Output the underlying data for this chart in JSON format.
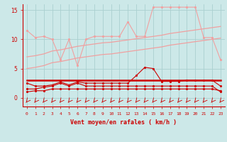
{
  "x": [
    0,
    1,
    2,
    3,
    4,
    5,
    6,
    7,
    8,
    9,
    10,
    11,
    12,
    13,
    14,
    15,
    16,
    17,
    18,
    19,
    20,
    21,
    22,
    23
  ],
  "line_top": [
    11.5,
    10.3,
    10.5,
    10.0,
    6.5,
    10.0,
    5.5,
    10.0,
    10.5,
    10.5,
    10.5,
    10.5,
    13.0,
    10.5,
    10.5,
    15.5,
    15.5,
    15.5,
    15.5,
    15.5,
    15.5,
    10.3,
    10.3,
    6.5
  ],
  "line_mid_lo": [
    5.0,
    5.2,
    5.5,
    6.0,
    6.2,
    6.5,
    6.8,
    7.0,
    7.2,
    7.4,
    7.5,
    7.7,
    7.9,
    8.1,
    8.3,
    8.5,
    8.7,
    9.0,
    9.2,
    9.4,
    9.6,
    9.8,
    10.0,
    10.2
  ],
  "line_mid_hi": [
    7.0,
    7.2,
    7.5,
    8.0,
    8.2,
    8.5,
    8.8,
    9.0,
    9.2,
    9.4,
    9.5,
    9.7,
    9.9,
    10.1,
    10.3,
    10.5,
    10.7,
    11.0,
    11.2,
    11.4,
    11.6,
    11.8,
    12.0,
    12.2
  ],
  "line_flat": [
    3.0,
    3.0,
    3.0,
    3.0,
    3.0,
    3.0,
    3.0,
    3.0,
    3.0,
    3.0,
    3.0,
    3.0,
    3.0,
    3.0,
    3.0,
    3.0,
    3.0,
    3.0,
    3.0,
    3.0,
    3.0,
    3.0,
    3.0,
    3.0
  ],
  "line_zigzag": [
    2.5,
    2.0,
    2.0,
    2.2,
    2.7,
    2.2,
    2.7,
    2.5,
    2.5,
    2.5,
    2.5,
    2.5,
    2.5,
    3.8,
    5.2,
    5.0,
    2.8,
    2.8,
    2.8,
    3.0,
    3.0,
    3.0,
    3.0,
    2.0
  ],
  "line_low1": [
    1.5,
    1.5,
    1.8,
    2.0,
    2.5,
    2.0,
    2.5,
    2.0,
    2.0,
    2.0,
    2.0,
    2.0,
    2.0,
    2.0,
    2.0,
    2.0,
    2.0,
    2.0,
    2.0,
    2.0,
    2.0,
    2.0,
    2.0,
    1.0
  ],
  "line_low2": [
    1.0,
    1.2,
    1.2,
    1.5,
    1.5,
    1.5,
    1.5,
    1.5,
    1.5,
    1.5,
    1.5,
    1.5,
    1.5,
    1.5,
    1.5,
    1.5,
    1.5,
    1.5,
    1.5,
    1.5,
    1.5,
    1.5,
    1.5,
    1.2
  ],
  "color_light": "#f0a0a0",
  "color_dark": "#cc0000",
  "bg_color": "#cce8e8",
  "grid_color": "#aad0d0",
  "xlabel": "Vent moyen/en rafales ( km/h )",
  "ylim": [
    -1.5,
    16
  ],
  "xlim": [
    -0.5,
    23.5
  ],
  "yticks": [
    0,
    5,
    10,
    15
  ],
  "xticks": [
    0,
    1,
    2,
    3,
    4,
    5,
    6,
    7,
    8,
    9,
    10,
    11,
    12,
    13,
    14,
    15,
    16,
    17,
    18,
    19,
    20,
    21,
    22,
    23
  ]
}
